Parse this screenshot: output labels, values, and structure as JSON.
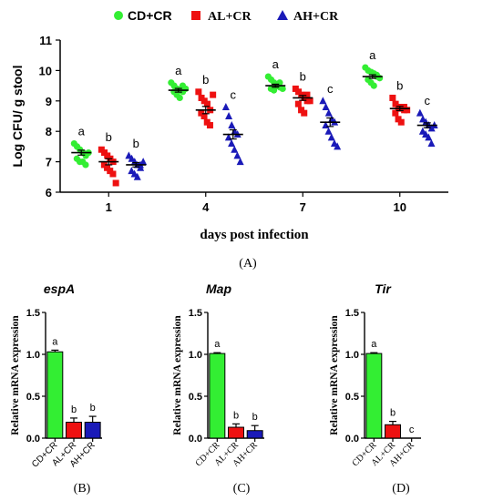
{
  "figure": {
    "panel_a_caption": "(A)",
    "panel_b_caption": "(B)",
    "panel_c_caption": "(C)",
    "panel_d_caption": "(D)"
  },
  "colors": {
    "green": "#33ee33",
    "red": "#ee1111",
    "blue": "#1a1ab8",
    "text": "#000000"
  },
  "chart_data": [
    {
      "id": "A",
      "type": "scatter",
      "title": "",
      "xlabel": "days post infection",
      "ylabel": "Log CFU/ g stool",
      "ylim": [
        6,
        11
      ],
      "yticks": [
        6,
        7,
        8,
        9,
        10,
        11
      ],
      "categories": [
        "1",
        "4",
        "7",
        "10"
      ],
      "legend_position": "top",
      "grid": false,
      "series": [
        {
          "name": "CD+CR",
          "color": "#33ee33",
          "marker": "circle",
          "points": [
            [
              7.6,
              7.5,
              7.4,
              7.3,
              7.2,
              7.1,
              7.0,
              7.0,
              6.9,
              7.3
            ],
            [
              9.6,
              9.5,
              9.4,
              9.35,
              9.3,
              9.3,
              9.2,
              9.1,
              9.5,
              9.4
            ],
            [
              9.8,
              9.7,
              9.6,
              9.5,
              9.45,
              9.4,
              9.35,
              9.5,
              9.6,
              9.4
            ],
            [
              10.1,
              10.0,
              9.95,
              9.9,
              9.8,
              9.7,
              9.6,
              9.5,
              9.85,
              9.75
            ]
          ],
          "means": [
            7.3,
            9.35,
            9.5,
            9.8
          ],
          "sems": [
            0.08,
            0.06,
            0.05,
            0.06
          ],
          "labels": [
            "a",
            "a",
            "a",
            "a"
          ]
        },
        {
          "name": "AL+CR",
          "color": "#ee1111",
          "marker": "square",
          "points": [
            [
              7.4,
              7.3,
              7.2,
              7.1,
              7.0,
              6.9,
              6.8,
              6.7,
              6.6,
              6.3
            ],
            [
              9.3,
              9.1,
              9.0,
              8.9,
              8.7,
              8.6,
              8.5,
              8.3,
              8.2,
              9.2
            ],
            [
              9.4,
              9.3,
              9.2,
              9.1,
              9.0,
              8.9,
              8.7,
              8.6,
              9.2,
              9.0
            ],
            [
              9.1,
              8.9,
              8.8,
              8.75,
              8.7,
              8.6,
              8.4,
              8.3,
              8.8,
              8.7
            ]
          ],
          "means": [
            7.0,
            8.7,
            9.1,
            8.75
          ],
          "sems": [
            0.1,
            0.12,
            0.08,
            0.07
          ],
          "labels": [
            "b",
            "b",
            "b",
            "b"
          ]
        },
        {
          "name": "AH+CR",
          "color": "#1a1ab8",
          "marker": "triangle",
          "points": [
            [
              7.2,
              7.1,
              7.0,
              6.9,
              6.8,
              6.7,
              6.6,
              6.5,
              6.9,
              7.0
            ],
            [
              8.8,
              8.5,
              8.2,
              8.0,
              7.9,
              7.8,
              7.6,
              7.4,
              7.2,
              7.0
            ],
            [
              9.0,
              8.8,
              8.6,
              8.4,
              8.3,
              8.2,
              8.0,
              7.8,
              7.6,
              7.5
            ],
            [
              8.6,
              8.4,
              8.3,
              8.2,
              8.1,
              8.0,
              7.9,
              7.8,
              7.6,
              8.2
            ]
          ],
          "means": [
            6.9,
            7.9,
            8.3,
            8.2
          ],
          "sems": [
            0.07,
            0.15,
            0.14,
            0.08
          ],
          "labels": [
            "b",
            "c",
            "c",
            "c"
          ]
        }
      ]
    },
    {
      "id": "B",
      "type": "bar",
      "title": "espA",
      "ylabel": "Relative mRNA expression",
      "ylim": [
        0,
        1.5
      ],
      "yticks": [
        "0.0",
        "0.5",
        "1.0",
        "1.5"
      ],
      "categories": [
        "CD+CR",
        "AL+CR",
        "AH+CR"
      ],
      "values": [
        1.03,
        0.19,
        0.19
      ],
      "errors": [
        0.02,
        0.05,
        0.07
      ],
      "labels": [
        "a",
        "b",
        "b"
      ],
      "colors": [
        "#33ee33",
        "#ee1111",
        "#1a1ab8"
      ]
    },
    {
      "id": "C",
      "type": "bar",
      "title": "Map",
      "ylabel": "Relative mRNA expression",
      "ylim": [
        0,
        1.5
      ],
      "yticks": [
        "0.0",
        "0.5",
        "1.0",
        "1.5"
      ],
      "categories": [
        "CD+CR",
        "AL+CR",
        "AH+CR"
      ],
      "values": [
        1.01,
        0.13,
        0.09
      ],
      "errors": [
        0.01,
        0.04,
        0.06
      ],
      "labels": [
        "a",
        "b",
        "b"
      ],
      "colors": [
        "#33ee33",
        "#ee1111",
        "#1a1ab8"
      ]
    },
    {
      "id": "D",
      "type": "bar",
      "title": "Tir",
      "ylabel": "Relative mRNA expression",
      "ylim": [
        0,
        1.5
      ],
      "yticks": [
        "0.0",
        "0.5",
        "1.0",
        "1.5"
      ],
      "categories": [
        "CD+CR",
        "AL+CR",
        "AH+CR"
      ],
      "values": [
        1.01,
        0.16,
        0.0
      ],
      "errors": [
        0.01,
        0.04,
        0.0
      ],
      "labels": [
        "a",
        "b",
        "c"
      ],
      "colors": [
        "#33ee33",
        "#ee1111",
        "#1a1ab8"
      ]
    }
  ]
}
